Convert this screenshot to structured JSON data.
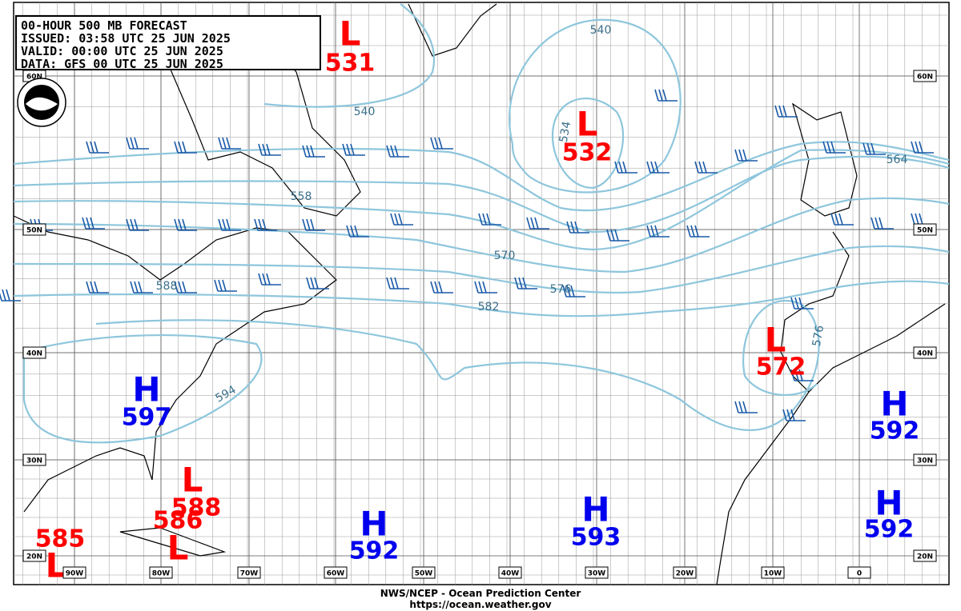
{
  "header": {
    "lines": [
      "00-HOUR 500 MB FORECAST",
      "ISSUED:  03:58 UTC 25 JUN 2025",
      "VALID:   00:00 UTC 25 JUN 2025",
      "DATA:   GFS 00 UTC 25 JUN 2025"
    ]
  },
  "centers": [
    {
      "type": "L",
      "value": 531
    },
    {
      "type": "L",
      "value": 532
    },
    {
      "type": "L",
      "value": 572
    },
    {
      "type": "H",
      "value": 597
    },
    {
      "type": "H",
      "value": 592
    },
    {
      "type": "L",
      "value": 588
    },
    {
      "type": "L",
      "value": 586
    },
    {
      "type": "L",
      "value": 585
    },
    {
      "type": "H",
      "value": 592
    },
    {
      "type": "H",
      "value": 593
    },
    {
      "type": "H",
      "value": 592
    }
  ],
  "contour_labels": [
    540,
    540,
    558,
    570,
    576,
    582,
    588,
    594,
    564,
    534,
    576
  ],
  "latitudes": [
    "60N",
    "50N",
    "40N",
    "30N",
    "20N"
  ],
  "longitudes": [
    "90W",
    "80W",
    "70W",
    "60W",
    "50W",
    "40W",
    "30W",
    "20W",
    "10W",
    "0"
  ],
  "footer": [
    "NWS/NCEP - Ocean Prediction Center",
    "https://ocean.weather.gov"
  ]
}
